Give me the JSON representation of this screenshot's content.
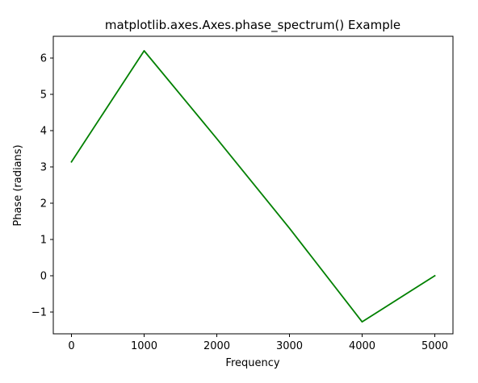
{
  "chart_data": {
    "type": "line",
    "title": "matplotlib.axes.Axes.phase_spectrum() Example",
    "xlabel": "Frequency",
    "ylabel": "Phase (radians)",
    "xlim": [
      -250,
      5250
    ],
    "ylim": [
      -1.6,
      6.6
    ],
    "x_ticks": [
      0,
      1000,
      2000,
      3000,
      4000,
      5000
    ],
    "x_tick_labels": [
      "0",
      "1000",
      "2000",
      "3000",
      "4000",
      "5000"
    ],
    "y_ticks": [
      -1,
      0,
      1,
      2,
      3,
      4,
      5,
      6
    ],
    "y_tick_labels": [
      "−1",
      "0",
      "1",
      "2",
      "3",
      "4",
      "5",
      "6"
    ],
    "grid": false,
    "series": [
      {
        "color": "#008000",
        "x": [
          0,
          1000,
          2000,
          3000,
          4000,
          5000
        ],
        "y": [
          3.14,
          6.2,
          3.78,
          1.31,
          -1.27,
          0.0
        ]
      }
    ]
  }
}
